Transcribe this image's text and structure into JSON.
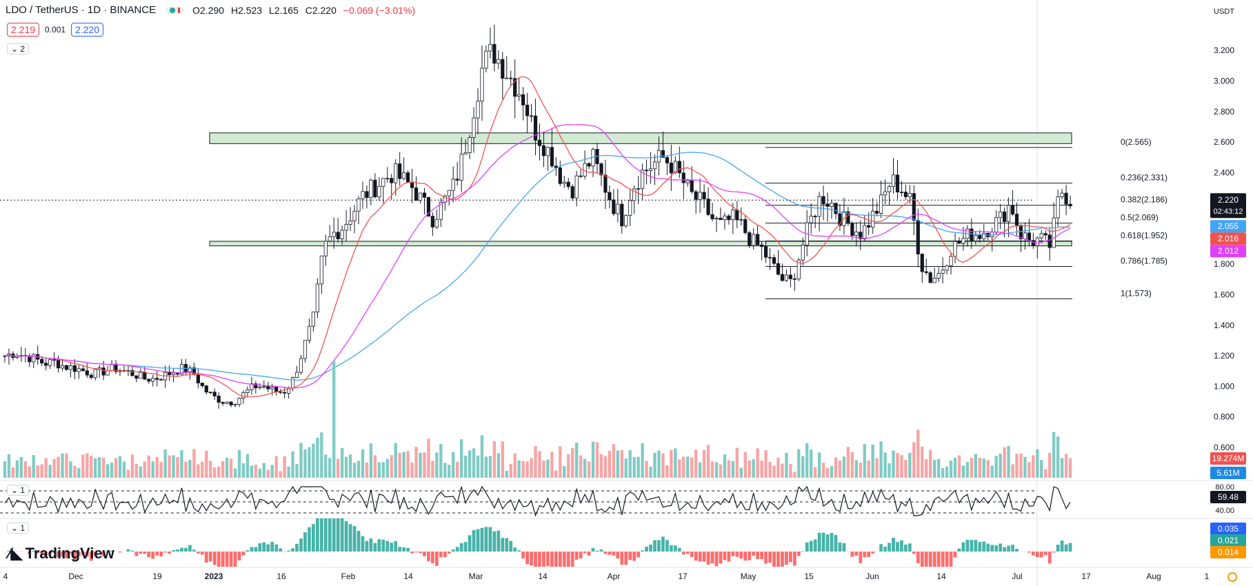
{
  "header": {
    "symbol": "LDO / TetherUS · 1D · BINANCE",
    "open": "O2.290",
    "high": "H2.523",
    "low": "L2.165",
    "close": "C2.220",
    "change": "−0.069 (−3.01%)",
    "bid": "2.219",
    "spread": "0.001",
    "ask": "2.220",
    "collapse_count": "2"
  },
  "currency_label": "USDT",
  "logo_text": "TradingView",
  "price_tag": {
    "value": "2.220",
    "countdown": "02:43:12"
  },
  "ma_tags": [
    {
      "value": "2.055",
      "color": "#42a5f5"
    },
    {
      "value": "2.016",
      "color": "#ef5350"
    },
    {
      "value": "2.012",
      "color": "#e040fb"
    }
  ],
  "volume_tags": [
    {
      "value": "19.274M",
      "color": "#ef5350"
    },
    {
      "value": "5.61M",
      "color": "#1e88e5"
    }
  ],
  "rsi": {
    "label_count": "1",
    "value": "59.48",
    "ticks": [
      "80.00",
      "40.00"
    ]
  },
  "macd": {
    "label_count": "1",
    "values": [
      {
        "value": "0.035",
        "color": "#2962ff"
      },
      {
        "value": "0.021",
        "color": "#26a69a"
      },
      {
        "value": "0.014",
        "color": "#ff9800"
      }
    ]
  },
  "chart_data": {
    "type": "candlestick",
    "y_axis_ticks": [
      "3.200",
      "3.000",
      "2.800",
      "2.600",
      "2.400",
      "2.200",
      "2.000",
      "1.800",
      "1.600",
      "1.400",
      "1.200",
      "1.000",
      "0.800",
      "0.600"
    ],
    "ylim": [
      0.55,
      3.35
    ],
    "x_axis_ticks": [
      "4",
      "Dec",
      "19",
      "2023",
      "16",
      "Feb",
      "14",
      "Mar",
      "14",
      "Apr",
      "17",
      "May",
      "15",
      "Jun",
      "14",
      "Jul",
      "17",
      "Aug",
      "1"
    ],
    "fib_levels": [
      {
        "label": "0(2.565)",
        "value": 2.565
      },
      {
        "label": "0.236(2.331)",
        "value": 2.331
      },
      {
        "label": "0.382(2.186)",
        "value": 2.186
      },
      {
        "label": "0.5(2.069)",
        "value": 2.069
      },
      {
        "label": "0.618(1.952)",
        "value": 1.952
      },
      {
        "label": "0.786(1.785)",
        "value": 1.785
      },
      {
        "label": "1(1.573)",
        "value": 1.573
      }
    ],
    "zones": [
      {
        "from": 2.59,
        "to": 2.66
      },
      {
        "from": 1.92,
        "to": 1.95
      }
    ],
    "anchor_prices": [
      1.2,
      1.22,
      1.2,
      1.18,
      1.15,
      1.16,
      1.13,
      1.12,
      1.1,
      1.08,
      1.1,
      1.12,
      1.1,
      1.08,
      1.05,
      1.05,
      1.07,
      1.1,
      1.12,
      1.08,
      0.98,
      0.93,
      0.9,
      0.9,
      0.95,
      1.0,
      1.0,
      0.97,
      0.96,
      1.05,
      1.25,
      1.45,
      1.9,
      2.0,
      2.05,
      2.15,
      2.25,
      2.3,
      2.35,
      2.4,
      2.35,
      2.3,
      2.2,
      2.1,
      2.2,
      2.3,
      2.5,
      2.8,
      3.1,
      3.2,
      3.1,
      3.0,
      2.9,
      2.7,
      2.6,
      2.5,
      2.35,
      2.3,
      2.4,
      2.5,
      2.35,
      2.2,
      2.1,
      2.3,
      2.4,
      2.45,
      2.5,
      2.45,
      2.35,
      2.25,
      2.2,
      2.1,
      2.05,
      2.1,
      2.05,
      1.95,
      1.9,
      1.8,
      1.7,
      1.68,
      1.9,
      2.1,
      2.25,
      2.2,
      2.1,
      2.05,
      2.0,
      2.1,
      2.2,
      2.35,
      2.3,
      2.2,
      1.8,
      1.7,
      1.75,
      1.9,
      1.95,
      2.0,
      2.0,
      2.05,
      2.1,
      2.2,
      2.0,
      1.95,
      1.96,
      1.92,
      2.29,
      2.22
    ],
    "moving_averages": [
      {
        "color": "#42a5f5",
        "last": 2.055
      },
      {
        "color": "#ef5350",
        "last": 2.016
      },
      {
        "color": "#e040fb",
        "last": 2.012
      }
    ]
  }
}
